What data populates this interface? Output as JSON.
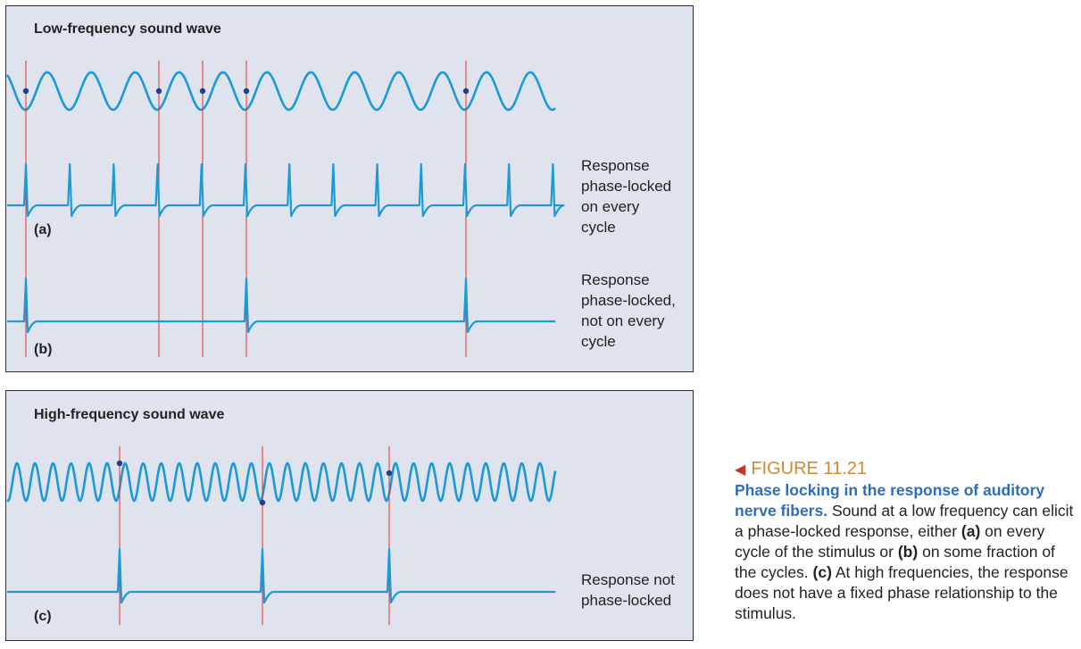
{
  "panel_low": {
    "title": "Low-frequency sound wave",
    "label_a": "(a)",
    "label_b": "(b)",
    "response_a": [
      "Response",
      "phase-locked",
      "on every",
      "cycle"
    ],
    "response_b": [
      "Response",
      "phase-locked,",
      "not on every",
      "cycle"
    ]
  },
  "panel_high": {
    "title": "High-frequency sound wave",
    "label_c": "(c)",
    "response_c": [
      "Response not",
      "phase-locked"
    ]
  },
  "caption": {
    "figure_number": "FIGURE 11.21",
    "title": "Phase locking in the response of auditory nerve fibers.",
    "body_parts": [
      " Sound at a low frequency can elicit a phase-locked response, either ",
      "(a)",
      " on every cycle of the stimulus or ",
      "(b)",
      " on some fraction of the cycles. ",
      "(c)",
      " At high frequencies, the response does not have a fixed phase relationship to the stimulus."
    ]
  },
  "colors": {
    "wave": "#1b9ad6",
    "marker_line": "#e4312f",
    "dot": "#1f3f8f",
    "panel_bg": "#dfe3ee",
    "figure_number": "#d08a2e",
    "caption_title": "#2f6db5"
  }
}
